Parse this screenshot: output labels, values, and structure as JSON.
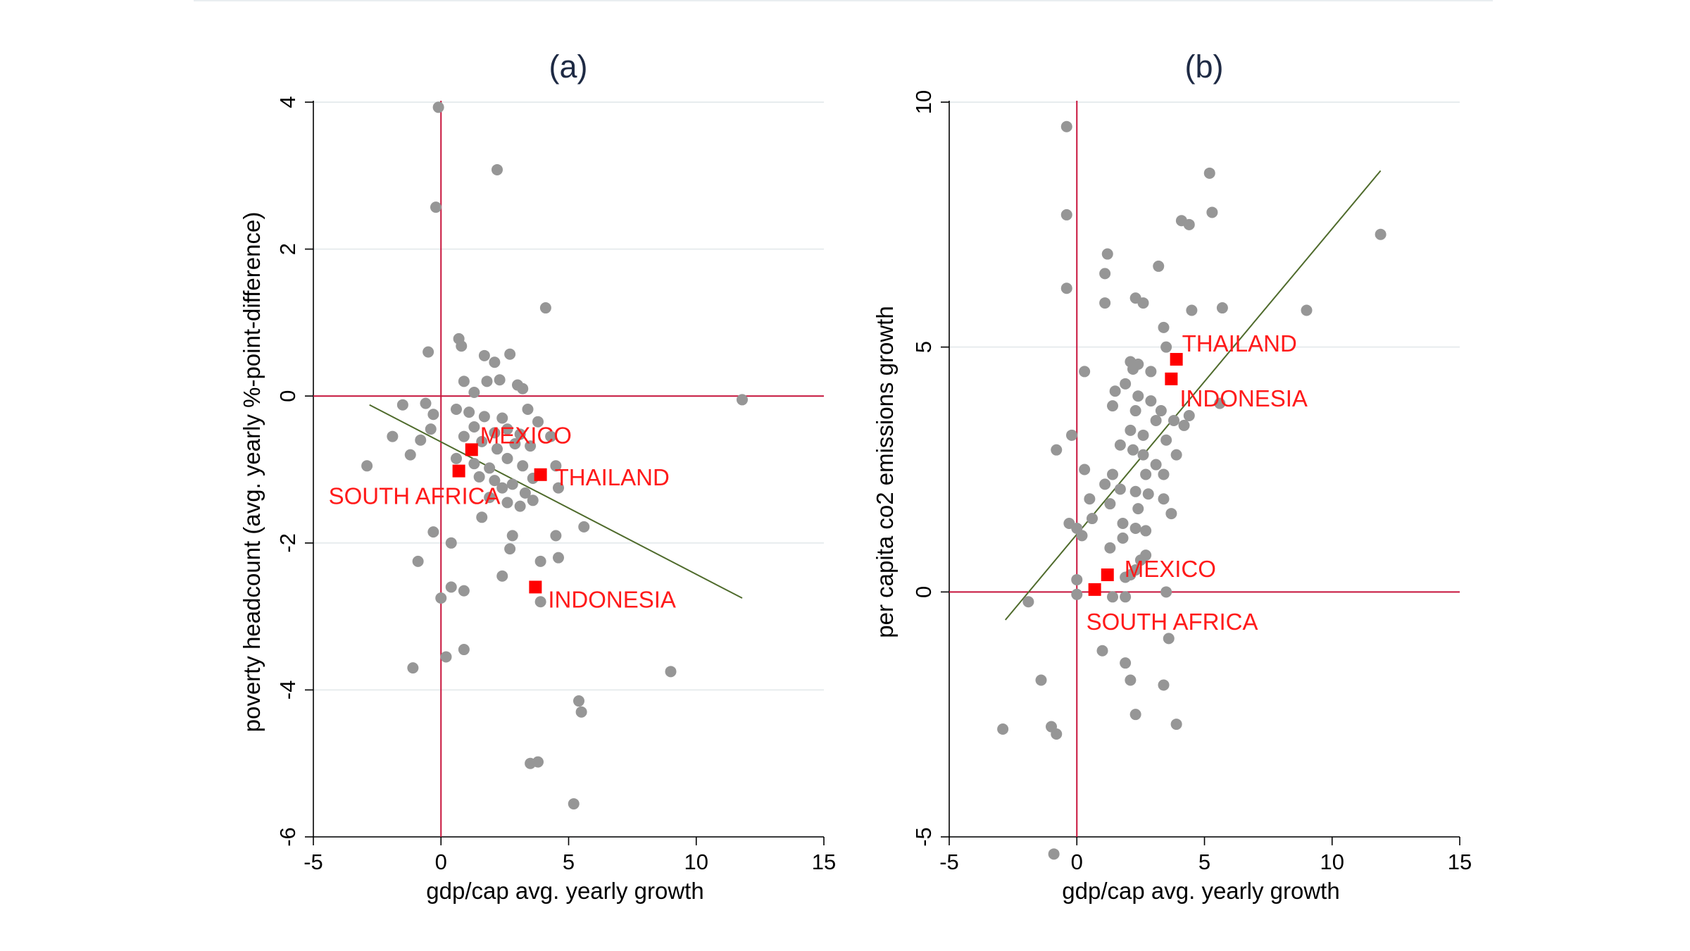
{
  "chart_data": [
    {
      "type": "scatter",
      "title": "(a)",
      "xlabel": "gdp/cap avg. yearly growth",
      "ylabel": "poverty headcount (avg. yearly %-point-difference)",
      "xlim": [
        -5,
        15
      ],
      "ylim": [
        -6,
        4
      ],
      "xticks": [
        "-5",
        "0",
        "5",
        "10",
        "15"
      ],
      "yticks": [
        "-6",
        "-4",
        "-2",
        "0",
        "2",
        "4"
      ],
      "grid": true,
      "reference_lines": {
        "x": 0,
        "y": 0
      },
      "fit_line": [
        [
          -2.8,
          -0.12
        ],
        [
          11.8,
          -2.75
        ]
      ],
      "points": [
        [
          -0.1,
          3.93
        ],
        [
          2.2,
          3.08
        ],
        [
          -0.2,
          2.57
        ],
        [
          4.1,
          1.2
        ],
        [
          0.7,
          0.78
        ],
        [
          0.8,
          0.68
        ],
        [
          -0.5,
          0.6
        ],
        [
          1.7,
          0.55
        ],
        [
          2.1,
          0.46
        ],
        [
          2.7,
          0.57
        ],
        [
          3,
          0.15
        ],
        [
          0.9,
          0.2
        ],
        [
          1.3,
          0.05
        ],
        [
          1.8,
          0.2
        ],
        [
          2.3,
          0.22
        ],
        [
          3.2,
          0.1
        ],
        [
          11.8,
          -0.05
        ],
        [
          -1.5,
          -0.12
        ],
        [
          -0.6,
          -0.1
        ],
        [
          -0.3,
          -0.25
        ],
        [
          0.6,
          -0.18
        ],
        [
          1.1,
          -0.22
        ],
        [
          1.7,
          -0.28
        ],
        [
          2.4,
          -0.3
        ],
        [
          3.4,
          -0.18
        ],
        [
          3.8,
          -0.35
        ],
        [
          1.3,
          -0.42
        ],
        [
          2.1,
          -0.5
        ],
        [
          2.6,
          -0.45
        ],
        [
          3.1,
          -0.52
        ],
        [
          -0.4,
          -0.45
        ],
        [
          -1.9,
          -0.55
        ],
        [
          -0.8,
          -0.6
        ],
        [
          0.9,
          -0.55
        ],
        [
          1.6,
          -0.62
        ],
        [
          2.2,
          -0.72
        ],
        [
          2.9,
          -0.65
        ],
        [
          3.5,
          -0.68
        ],
        [
          4.3,
          -0.55
        ],
        [
          -1.2,
          -0.8
        ],
        [
          0.6,
          -0.85
        ],
        [
          1.3,
          -0.92
        ],
        [
          1.9,
          -0.98
        ],
        [
          2.6,
          -0.85
        ],
        [
          3.2,
          -0.95
        ],
        [
          4.5,
          -0.95
        ],
        [
          -2.9,
          -0.95
        ],
        [
          1.5,
          -1.1
        ],
        [
          2.1,
          -1.15
        ],
        [
          2.8,
          -1.2
        ],
        [
          3.6,
          -1.12
        ],
        [
          2.4,
          -1.25
        ],
        [
          3.3,
          -1.32
        ],
        [
          4.6,
          -1.25
        ],
        [
          1.9,
          -1.38
        ],
        [
          2.6,
          -1.45
        ],
        [
          3.1,
          -1.5
        ],
        [
          3.6,
          -1.42
        ],
        [
          1.6,
          -1.65
        ],
        [
          -0.3,
          -1.85
        ],
        [
          0.4,
          -2.0
        ],
        [
          2.8,
          -1.9
        ],
        [
          2.7,
          -2.08
        ],
        [
          4.5,
          -1.9
        ],
        [
          5.6,
          -1.78
        ],
        [
          -0.9,
          -2.25
        ],
        [
          3.9,
          -2.25
        ],
        [
          4.6,
          -2.2
        ],
        [
          0.4,
          -2.6
        ],
        [
          0.9,
          -2.65
        ],
        [
          2.4,
          -2.45
        ],
        [
          3.9,
          -2.8
        ],
        [
          0,
          -2.75
        ],
        [
          -1.1,
          -3.7
        ],
        [
          0.2,
          -3.55
        ],
        [
          0.9,
          -3.45
        ],
        [
          9,
          -3.75
        ],
        [
          5.4,
          -4.15
        ],
        [
          5.5,
          -4.3
        ],
        [
          3.5,
          -5.0
        ],
        [
          3.8,
          -4.98
        ],
        [
          5.2,
          -5.55
        ]
      ],
      "highlights": [
        {
          "label": "MEXICO",
          "x": 1.2,
          "y": -0.73
        },
        {
          "label": "SOUTH AFRICA",
          "x": 0.7,
          "y": -1.02
        },
        {
          "label": "THAILAND",
          "x": 3.9,
          "y": -1.07
        },
        {
          "label": "INDONESIA",
          "x": 3.7,
          "y": -2.6
        }
      ]
    },
    {
      "type": "scatter",
      "title": "(b)",
      "xlabel": "gdp/cap avg. yearly growth",
      "ylabel": "per capita co2 emissions growth",
      "xlim": [
        -5,
        15
      ],
      "ylim": [
        -5,
        10
      ],
      "xticks": [
        "-5",
        "0",
        "5",
        "10",
        "15"
      ],
      "yticks": [
        "-5",
        "0",
        "5",
        "10"
      ],
      "grid": true,
      "reference_lines": {
        "x": 0,
        "y": 0
      },
      "fit_line": [
        [
          -2.8,
          -0.57
        ],
        [
          11.9,
          8.6
        ]
      ],
      "points": [
        [
          -0.4,
          9.5
        ],
        [
          5.2,
          8.55
        ],
        [
          -0.4,
          7.7
        ],
        [
          5.3,
          7.75
        ],
        [
          4.1,
          7.58
        ],
        [
          4.4,
          7.5
        ],
        [
          11.9,
          7.3
        ],
        [
          1.2,
          6.9
        ],
        [
          3.2,
          6.65
        ],
        [
          1.1,
          6.5
        ],
        [
          -0.4,
          6.2
        ],
        [
          2.3,
          6.0
        ],
        [
          2.6,
          5.9
        ],
        [
          1.1,
          5.9
        ],
        [
          5.7,
          5.8
        ],
        [
          4.5,
          5.75
        ],
        [
          9,
          5.75
        ],
        [
          3.4,
          5.4
        ],
        [
          3.5,
          5.0
        ],
        [
          2.1,
          4.7
        ],
        [
          2.4,
          4.65
        ],
        [
          2.2,
          4.55
        ],
        [
          2.9,
          4.5
        ],
        [
          0.3,
          4.5
        ],
        [
          1.9,
          4.25
        ],
        [
          1.5,
          4.1
        ],
        [
          2.4,
          4.0
        ],
        [
          2.9,
          3.9
        ],
        [
          5.6,
          3.85
        ],
        [
          1.4,
          3.8
        ],
        [
          2.3,
          3.7
        ],
        [
          3.3,
          3.7
        ],
        [
          4.4,
          3.6
        ],
        [
          3.1,
          3.5
        ],
        [
          3.8,
          3.5
        ],
        [
          4.2,
          3.4
        ],
        [
          2.1,
          3.3
        ],
        [
          2.6,
          3.2
        ],
        [
          -0.2,
          3.2
        ],
        [
          3.5,
          3.1
        ],
        [
          1.7,
          3.0
        ],
        [
          -0.8,
          2.9
        ],
        [
          2.2,
          2.9
        ],
        [
          2.6,
          2.8
        ],
        [
          3.9,
          2.8
        ],
        [
          3.1,
          2.6
        ],
        [
          0.3,
          2.5
        ],
        [
          1.4,
          2.4
        ],
        [
          2.7,
          2.4
        ],
        [
          3.4,
          2.4
        ],
        [
          1.1,
          2.2
        ],
        [
          1.7,
          2.1
        ],
        [
          2.3,
          2.05
        ],
        [
          2.8,
          2.0
        ],
        [
          0.5,
          1.9
        ],
        [
          3.4,
          1.9
        ],
        [
          1.3,
          1.8
        ],
        [
          2.4,
          1.7
        ],
        [
          3.7,
          1.6
        ],
        [
          0.6,
          1.5
        ],
        [
          1.8,
          1.4
        ],
        [
          -0.3,
          1.4
        ],
        [
          0,
          1.3
        ],
        [
          2.3,
          1.3
        ],
        [
          2.7,
          1.25
        ],
        [
          1.8,
          1.1
        ],
        [
          0.2,
          1.15
        ],
        [
          1.3,
          0.9
        ],
        [
          2.7,
          0.75
        ],
        [
          2.5,
          0.65
        ],
        [
          2.3,
          0.45
        ],
        [
          2.1,
          0.35
        ],
        [
          1.9,
          0.3
        ],
        [
          0,
          0.25
        ],
        [
          3.5,
          0.0
        ],
        [
          -1.9,
          -0.2
        ],
        [
          0,
          -0.05
        ],
        [
          1.4,
          -0.1
        ],
        [
          1.9,
          -0.1
        ],
        [
          3.6,
          -0.95
        ],
        [
          1,
          -1.2
        ],
        [
          1.9,
          -1.45
        ],
        [
          -1.4,
          -1.8
        ],
        [
          2.1,
          -1.8
        ],
        [
          3.4,
          -1.9
        ],
        [
          2.3,
          -2.5
        ],
        [
          3.9,
          -2.7
        ],
        [
          -2.9,
          -2.8
        ],
        [
          -1,
          -2.75
        ],
        [
          -0.8,
          -2.9
        ],
        [
          -0.9,
          -5.35
        ]
      ],
      "highlights": [
        {
          "label": "THAILAND",
          "x": 3.9,
          "y": 4.75
        },
        {
          "label": "INDONESIA",
          "x": 3.7,
          "y": 4.35
        },
        {
          "label": "MEXICO",
          "x": 1.2,
          "y": 0.35
        },
        {
          "label": "SOUTH AFRICA",
          "x": 0.7,
          "y": 0.05
        }
      ]
    }
  ]
}
